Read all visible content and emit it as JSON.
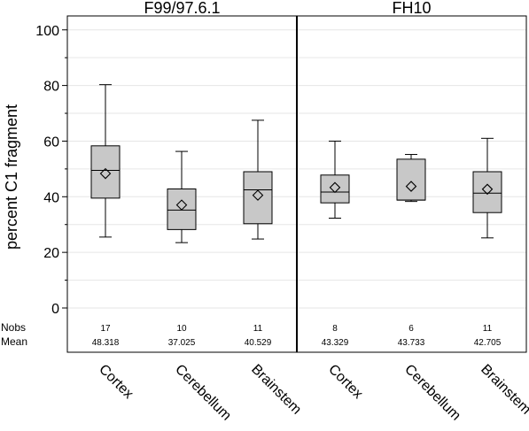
{
  "chart_data": {
    "type": "boxplot",
    "ylabel": "percent C1 fragment",
    "ylim": [
      -5,
      105
    ],
    "yticks": [
      0,
      20,
      40,
      60,
      80,
      100
    ],
    "grid": true,
    "stat_labels": {
      "nobs": "Nobs",
      "mean": "Mean"
    },
    "panels": [
      {
        "title": "F99/97.6.1",
        "groups": [
          {
            "category": "Cortex",
            "min": 25.5,
            "q1": 39.5,
            "median": 49.5,
            "q3": 58.3,
            "max": 80.3,
            "mean": 48.318,
            "nobs": "17",
            "mean_label": "48.318"
          },
          {
            "category": "Cerebellum",
            "min": 23.5,
            "q1": 28.2,
            "median": 35.2,
            "q3": 42.8,
            "max": 56.3,
            "mean": 37.025,
            "nobs": "10",
            "mean_label": "37.025"
          },
          {
            "category": "Brainstem",
            "min": 24.8,
            "q1": 30.3,
            "median": 42.5,
            "q3": 49.0,
            "max": 67.5,
            "mean": 40.529,
            "nobs": "11",
            "mean_label": "40.529"
          }
        ]
      },
      {
        "title": "FH10",
        "groups": [
          {
            "category": "Cortex",
            "min": 32.3,
            "q1": 37.8,
            "median": 41.7,
            "q3": 47.8,
            "max": 60.0,
            "mean": 43.329,
            "nobs": "8",
            "mean_label": "43.329"
          },
          {
            "category": "Cerebellum",
            "min": 38.3,
            "q1": 38.8,
            "median": 38.8,
            "q3": 53.5,
            "max": 55.2,
            "mean": 43.733,
            "nobs": "6",
            "mean_label": "43.733"
          },
          {
            "category": "Brainstem",
            "min": 25.2,
            "q1": 34.3,
            "median": 41.3,
            "q3": 49.0,
            "max": 61.0,
            "mean": 42.705,
            "nobs": "11",
            "mean_label": "42.705"
          }
        ]
      }
    ]
  }
}
